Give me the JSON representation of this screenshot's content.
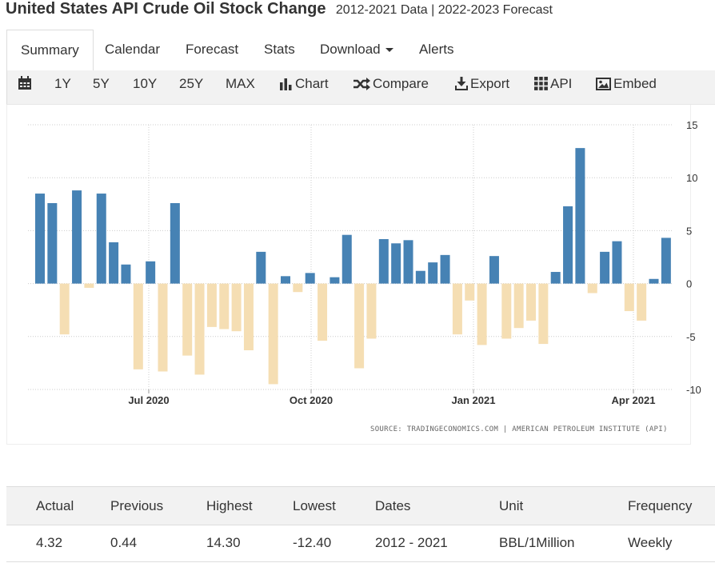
{
  "header": {
    "title": "United States API Crude Oil Stock Change",
    "subtitle": "2012-2021 Data | 2022-2023 Forecast"
  },
  "tabs": [
    "Summary",
    "Calendar",
    "Forecast",
    "Stats",
    "Download",
    "Alerts"
  ],
  "toolbar": {
    "ranges": [
      "1Y",
      "5Y",
      "10Y",
      "25Y",
      "MAX"
    ],
    "chart": "Chart",
    "compare": "Compare",
    "export": "Export",
    "api": "API",
    "embed": "Embed"
  },
  "chart_data": {
    "type": "bar",
    "values": [
      8.5,
      7.6,
      -4.8,
      8.8,
      -0.4,
      8.5,
      3.9,
      1.8,
      -8.1,
      2.1,
      -8.3,
      7.6,
      -6.8,
      -8.6,
      -4.1,
      -4.3,
      -4.5,
      -6.3,
      3.0,
      -9.5,
      0.7,
      -0.8,
      1.0,
      -5.4,
      0.6,
      4.6,
      -8.0,
      -5.2,
      4.2,
      3.8,
      4.1,
      1.2,
      2.0,
      2.7,
      -4.8,
      -1.6,
      -5.8,
      2.6,
      -5.2,
      -4.2,
      -3.5,
      -5.7,
      1.1,
      7.3,
      12.8,
      -0.9,
      3.0,
      4.0,
      -2.6,
      -3.5,
      0.44,
      4.32
    ],
    "x_ticks": [
      "Jul 2020",
      "Oct 2020",
      "Jan 2021",
      "Apr 2021"
    ],
    "y_ticks": [
      "15",
      "10",
      "5",
      "0",
      "-5",
      "-10"
    ],
    "ylim": [
      -10,
      15
    ],
    "grid": true,
    "colors": {
      "positive": "#4682b4",
      "negative": "#f5deb3"
    },
    "source": "SOURCE: TRADINGECONOMICS.COM  |  AMERICAN PETROLEUM INSTITUTE (API)"
  },
  "stats": {
    "headers": [
      "Actual",
      "Previous",
      "Highest",
      "Lowest",
      "Dates",
      "Unit",
      "Frequency"
    ],
    "values": [
      "4.32",
      "0.44",
      "14.30",
      "-12.40",
      "2012 - 2021",
      "BBL/1Million",
      "Weekly"
    ]
  }
}
